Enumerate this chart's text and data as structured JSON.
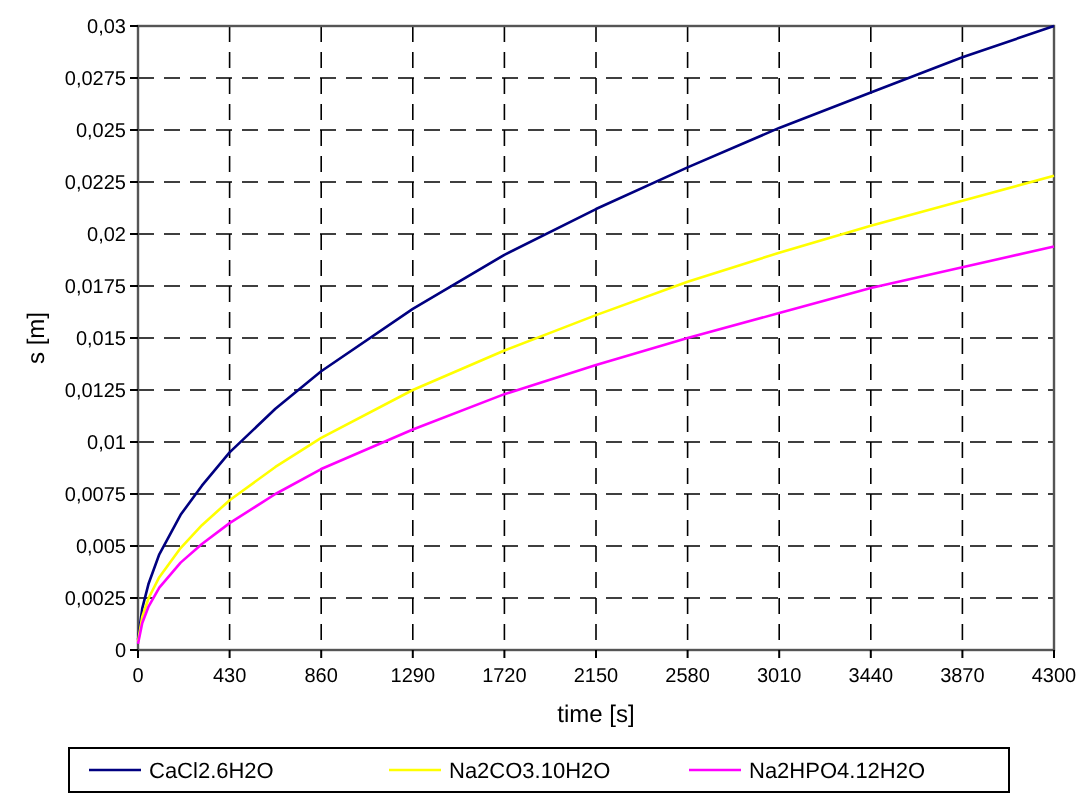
{
  "chart_data": {
    "type": "line",
    "xlabel": "time [s]",
    "ylabel": "s [m]",
    "x": [
      0,
      20,
      50,
      100,
      200,
      300,
      430,
      645,
      860,
      1290,
      1720,
      2150,
      2580,
      3010,
      3440,
      3870,
      4300
    ],
    "series": [
      {
        "name": "CaCl2.6H2O",
        "color": "#000080",
        "values": [
          0.0005,
          0.002,
          0.0032,
          0.0046,
          0.0065,
          0.0079,
          0.0095,
          0.0116,
          0.0134,
          0.0164,
          0.019,
          0.0212,
          0.0232,
          0.0251,
          0.0268,
          0.0285,
          0.03
        ]
      },
      {
        "name": "Na2CO3.10H2O",
        "color": "#ffff00",
        "values": [
          0.0004,
          0.0016,
          0.0025,
          0.0035,
          0.0049,
          0.006,
          0.0072,
          0.0088,
          0.0102,
          0.0125,
          0.0144,
          0.0161,
          0.0177,
          0.0191,
          0.0204,
          0.0216,
          0.0228
        ]
      },
      {
        "name": "Na2HPO4.12H2O",
        "color": "#ff00ff",
        "values": [
          0.0003,
          0.0013,
          0.0021,
          0.003,
          0.0042,
          0.0051,
          0.0061,
          0.0075,
          0.0087,
          0.0106,
          0.0123,
          0.0137,
          0.015,
          0.0162,
          0.0174,
          0.0184,
          0.0194
        ]
      }
    ],
    "xlim": [
      0,
      4300
    ],
    "xticks": [
      0,
      430,
      860,
      1290,
      1720,
      2150,
      2580,
      3010,
      3440,
      3870,
      4300
    ],
    "ylim": [
      0,
      0.03
    ],
    "yticks": [
      {
        "value": 0,
        "label": "0"
      },
      {
        "value": 0.0025,
        "label": "0,0025"
      },
      {
        "value": 0.005,
        "label": "0,005"
      },
      {
        "value": 0.0075,
        "label": "0,0075"
      },
      {
        "value": 0.01,
        "label": "0,01"
      },
      {
        "value": 0.0125,
        "label": "0,0125"
      },
      {
        "value": 0.015,
        "label": "0,015"
      },
      {
        "value": 0.0175,
        "label": "0,0175"
      },
      {
        "value": 0.02,
        "label": "0,02"
      },
      {
        "value": 0.0225,
        "label": "0,0225"
      },
      {
        "value": 0.025,
        "label": "0,025"
      },
      {
        "value": 0.0275,
        "label": "0,0275"
      },
      {
        "value": 0.03,
        "label": "0,03"
      }
    ],
    "grid": true,
    "legend": "bottom",
    "marker": "none",
    "line_style": "solid"
  }
}
